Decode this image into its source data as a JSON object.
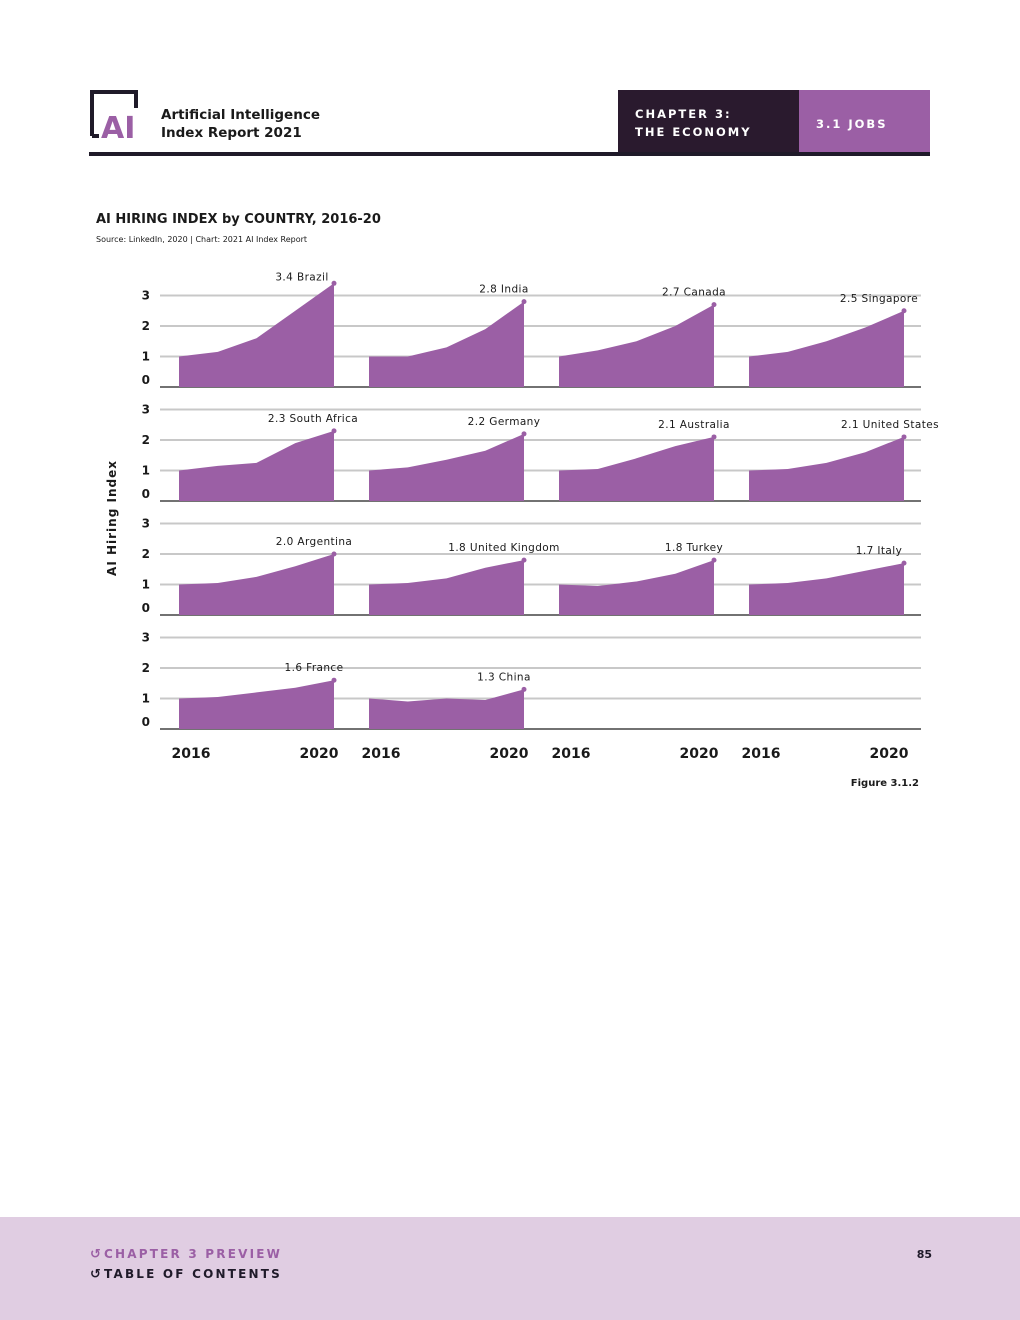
{
  "header": {
    "logo_text": "AI",
    "report_title_line1": "Artificial Intelligence",
    "report_title_line2": "Index Report 2021",
    "chapter_line1": "CHAPTER 3:",
    "chapter_line2": "THE ECONOMY",
    "section": "3.1 JOBS"
  },
  "chart_title": "AI HIRING INDEX by COUNTRY, 2016-20",
  "chart_source": "Source: LinkedIn, 2020 | Chart: 2021 AI Index Report",
  "figure_label": "Figure 3.1.2",
  "colors": {
    "area": "#9b5fa5",
    "grid": "#c8c8c8",
    "baseline": "#444444",
    "chapter_bg": "#2a1a2e",
    "section_bg": "#9b5fa5",
    "footer_bg": "#e0cde2"
  },
  "chart_data": {
    "type": "area",
    "layout": "small multiples",
    "ylabel": "AI Hiring Index",
    "ylim": [
      0,
      3
    ],
    "y_ticks": [
      0,
      1,
      2,
      3
    ],
    "x": [
      2016,
      2017,
      2018,
      2019,
      2020
    ],
    "x_tick_labels": [
      "2016",
      "2020"
    ],
    "grid": true,
    "series": [
      {
        "name": "Brazil",
        "label": "3.4 Brazil",
        "values": [
          1.0,
          1.15,
          1.6,
          2.5,
          3.4
        ]
      },
      {
        "name": "India",
        "label": "2.8 India",
        "values": [
          1.0,
          1.0,
          1.3,
          1.9,
          2.8
        ]
      },
      {
        "name": "Canada",
        "label": "2.7 Canada",
        "values": [
          1.0,
          1.2,
          1.5,
          2.0,
          2.7
        ]
      },
      {
        "name": "Singapore",
        "label": "2.5 Singapore",
        "values": [
          1.0,
          1.15,
          1.5,
          1.95,
          2.5
        ]
      },
      {
        "name": "South Africa",
        "label": "2.3 South Africa",
        "values": [
          1.0,
          1.15,
          1.25,
          1.9,
          2.3
        ]
      },
      {
        "name": "Germany",
        "label": "2.2 Germany",
        "values": [
          1.0,
          1.1,
          1.35,
          1.65,
          2.2
        ]
      },
      {
        "name": "Australia",
        "label": "2.1 Australia",
        "values": [
          1.0,
          1.05,
          1.4,
          1.8,
          2.1
        ]
      },
      {
        "name": "United States",
        "label": "2.1 United States",
        "values": [
          1.0,
          1.05,
          1.25,
          1.6,
          2.1
        ]
      },
      {
        "name": "Argentina",
        "label": "2.0 Argentina",
        "values": [
          1.0,
          1.05,
          1.25,
          1.6,
          2.0
        ]
      },
      {
        "name": "United Kingdom",
        "label": "1.8 United Kingdom",
        "values": [
          1.0,
          1.05,
          1.2,
          1.55,
          1.8
        ]
      },
      {
        "name": "Turkey",
        "label": "1.8 Turkey",
        "values": [
          1.0,
          0.95,
          1.1,
          1.35,
          1.8
        ]
      },
      {
        "name": "Italy",
        "label": "1.7 Italy",
        "values": [
          1.0,
          1.05,
          1.2,
          1.45,
          1.7
        ]
      },
      {
        "name": "France",
        "label": "1.6 France",
        "values": [
          1.0,
          1.05,
          1.2,
          1.35,
          1.6
        ]
      },
      {
        "name": "China",
        "label": "1.3 China",
        "values": [
          1.0,
          0.9,
          1.0,
          0.95,
          1.3
        ]
      }
    ]
  },
  "footer": {
    "chapter_preview": "CHAPTER 3 PREVIEW",
    "table_of_contents": "TABLE OF CONTENTS",
    "page_number": "85"
  }
}
